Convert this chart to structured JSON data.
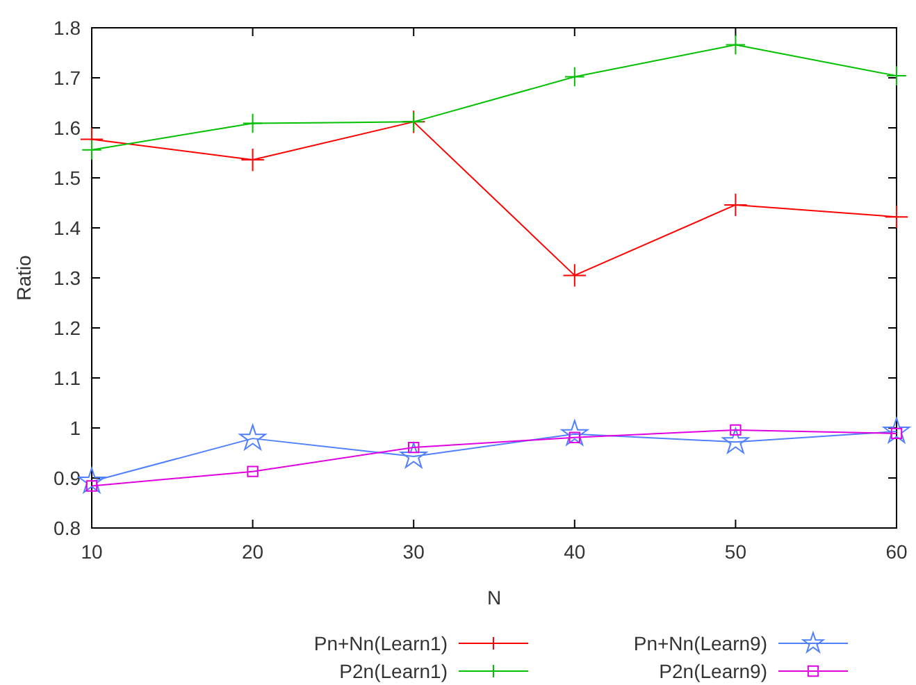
{
  "chart_data": {
    "type": "line",
    "xlabel": "N",
    "ylabel": "Ratio",
    "x": [
      10,
      20,
      30,
      40,
      50,
      60
    ],
    "xlim": [
      10,
      60
    ],
    "xticks": [
      10,
      20,
      30,
      40,
      50,
      60
    ],
    "ylim": [
      0.8,
      1.8
    ],
    "yticks": [
      0.8,
      0.9,
      1,
      1.1,
      1.2,
      1.3,
      1.4,
      1.5,
      1.6,
      1.7,
      1.8
    ],
    "grid": false,
    "legend": "bottom",
    "series": [
      {
        "name": "Pn+Nn(Learn1)",
        "color": "#ff0000",
        "marker": "cross",
        "values": [
          1.577,
          1.536,
          1.612,
          1.305,
          1.446,
          1.422
        ]
      },
      {
        "name": "P2n(Learn1)",
        "color": "#00c000",
        "marker": "cross",
        "values": [
          1.556,
          1.609,
          1.612,
          1.702,
          1.766,
          1.704
        ]
      },
      {
        "name": "Pn+Nn(Learn9)",
        "color": "#5080ff",
        "marker": "star",
        "values": [
          0.893,
          0.979,
          0.943,
          0.988,
          0.972,
          0.993
        ]
      },
      {
        "name": "P2n(Learn9)",
        "color": "#e000e0",
        "marker": "square",
        "values": [
          0.884,
          0.913,
          0.961,
          0.981,
          0.996,
          0.989
        ]
      }
    ]
  }
}
